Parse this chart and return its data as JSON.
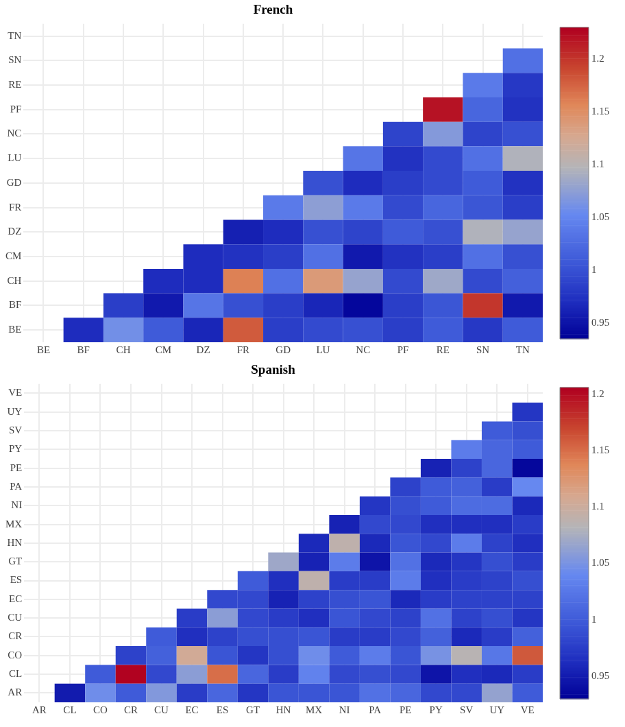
{
  "chart_data": [
    {
      "type": "heatmap",
      "title": "French",
      "grid": true,
      "categories": [
        "BE",
        "BF",
        "CH",
        "CM",
        "DZ",
        "FR",
        "GD",
        "LU",
        "NC",
        "PF",
        "RE",
        "SN",
        "TN"
      ],
      "y_categories": [
        "TN",
        "SN",
        "RE",
        "PF",
        "NC",
        "LU",
        "GD",
        "FR",
        "DZ",
        "CM",
        "CH",
        "BF",
        "BE"
      ],
      "cells": [
        [
          null,
          null,
          null,
          null,
          null,
          null,
          null,
          null,
          null,
          null,
          null,
          null,
          null
        ],
        [
          null,
          null,
          null,
          null,
          null,
          null,
          null,
          null,
          null,
          null,
          null,
          null,
          1.03
        ],
        [
          null,
          null,
          null,
          null,
          null,
          null,
          null,
          null,
          null,
          null,
          null,
          1.04,
          0.98
        ],
        [
          null,
          null,
          null,
          null,
          null,
          null,
          null,
          null,
          null,
          null,
          1.22,
          1.02,
          0.975
        ],
        [
          null,
          null,
          null,
          null,
          null,
          null,
          null,
          null,
          null,
          0.99,
          1.07,
          0.99,
          1.0
        ],
        [
          null,
          null,
          null,
          null,
          null,
          null,
          null,
          null,
          1.035,
          0.975,
          0.995,
          1.03,
          1.095
        ],
        [
          null,
          null,
          null,
          null,
          null,
          null,
          null,
          1.0,
          0.97,
          0.985,
          0.995,
          1.01,
          0.975
        ],
        [
          null,
          null,
          null,
          null,
          null,
          null,
          1.04,
          1.075,
          1.04,
          0.995,
          1.02,
          1.005,
          0.985
        ],
        [
          null,
          null,
          null,
          null,
          null,
          0.96,
          0.97,
          1.0,
          0.99,
          1.01,
          1.0,
          1.095,
          1.08
        ],
        [
          null,
          null,
          null,
          null,
          0.97,
          0.975,
          0.985,
          1.03,
          0.955,
          0.975,
          0.985,
          1.03,
          1.0
        ],
        [
          null,
          null,
          null,
          0.97,
          0.97,
          1.16,
          1.03,
          1.14,
          1.08,
          0.995,
          1.085,
          0.995,
          1.015
        ],
        [
          null,
          null,
          0.985,
          0.955,
          1.035,
          1.0,
          0.985,
          0.965,
          0.94,
          0.985,
          1.005,
          1.2,
          0.955
        ],
        [
          null,
          0.97,
          1.06,
          1.01,
          0.965,
          1.18,
          0.985,
          0.995,
          1.0,
          0.985,
          1.01,
          0.98,
          1.01
        ]
      ],
      "clim": [
        0.935,
        1.23
      ],
      "cticks": [
        0.95,
        1,
        1.05,
        1.1,
        1.15,
        1.2
      ]
    },
    {
      "type": "heatmap",
      "title": "Spanish",
      "grid": true,
      "categories": [
        "AR",
        "CL",
        "CO",
        "CR",
        "CU",
        "EC",
        "ES",
        "GT",
        "HN",
        "MX",
        "NI",
        "PA",
        "PE",
        "PY",
        "SV",
        "UY",
        "VE"
      ],
      "y_categories": [
        "VE",
        "UY",
        "SV",
        "PY",
        "PE",
        "PA",
        "NI",
        "MX",
        "HN",
        "GT",
        "ES",
        "EC",
        "CU",
        "CR",
        "CO",
        "CL",
        "AR"
      ],
      "cells": [
        [
          null,
          null,
          null,
          null,
          null,
          null,
          null,
          null,
          null,
          null,
          null,
          null,
          null,
          null,
          null,
          null,
          null
        ],
        [
          null,
          null,
          null,
          null,
          null,
          null,
          null,
          null,
          null,
          null,
          null,
          null,
          null,
          null,
          null,
          null,
          0.97
        ],
        [
          null,
          null,
          null,
          null,
          null,
          null,
          null,
          null,
          null,
          null,
          null,
          null,
          null,
          null,
          null,
          1.0,
          0.99
        ],
        [
          null,
          null,
          null,
          null,
          null,
          null,
          null,
          null,
          null,
          null,
          null,
          null,
          null,
          null,
          1.03,
          1.01,
          1.0
        ],
        [
          null,
          null,
          null,
          null,
          null,
          null,
          null,
          null,
          null,
          null,
          null,
          null,
          null,
          0.955,
          0.98,
          1.01,
          0.935
        ],
        [
          null,
          null,
          null,
          null,
          null,
          null,
          null,
          null,
          null,
          null,
          null,
          null,
          0.98,
          1.0,
          1.005,
          0.975,
          1.04
        ],
        [
          null,
          null,
          null,
          null,
          null,
          null,
          null,
          null,
          null,
          null,
          null,
          0.97,
          0.99,
          1.0,
          1.015,
          1.015,
          0.96
        ],
        [
          null,
          null,
          null,
          null,
          null,
          null,
          null,
          null,
          null,
          null,
          0.955,
          0.985,
          0.985,
          0.965,
          0.965,
          0.965,
          0.975
        ],
        [
          null,
          null,
          null,
          null,
          null,
          null,
          null,
          null,
          null,
          0.96,
          1.09,
          0.96,
          0.995,
          0.985,
          1.03,
          0.98,
          0.965
        ],
        [
          null,
          null,
          null,
          null,
          null,
          null,
          null,
          null,
          1.07,
          0.955,
          1.03,
          0.945,
          1.02,
          0.96,
          0.97,
          0.99,
          0.975
        ],
        [
          null,
          null,
          null,
          null,
          null,
          null,
          null,
          1.0,
          0.965,
          1.09,
          0.975,
          0.975,
          1.03,
          0.965,
          0.975,
          0.98,
          0.99
        ],
        [
          null,
          null,
          null,
          null,
          null,
          null,
          0.985,
          0.985,
          0.955,
          0.98,
          0.99,
          0.995,
          0.96,
          0.975,
          0.98,
          0.98,
          0.98
        ],
        [
          null,
          null,
          null,
          null,
          null,
          0.975,
          1.06,
          0.985,
          0.975,
          0.965,
          0.995,
          0.985,
          0.98,
          1.02,
          0.98,
          0.99,
          0.97
        ],
        [
          null,
          null,
          null,
          null,
          1.0,
          0.965,
          0.98,
          0.99,
          0.99,
          0.995,
          0.975,
          0.975,
          0.985,
          1.005,
          0.96,
          0.975,
          1.005
        ],
        [
          null,
          null,
          null,
          0.98,
          1.005,
          1.105,
          0.995,
          0.97,
          0.99,
          1.045,
          1.0,
          1.03,
          0.995,
          1.05,
          1.085,
          1.025,
          1.16
        ],
        [
          null,
          null,
          1.0,
          1.205,
          0.985,
          1.06,
          1.15,
          1.01,
          0.975,
          1.035,
          0.985,
          0.99,
          0.985,
          0.945,
          0.965,
          0.96,
          0.975
        ],
        [
          null,
          0.95,
          1.045,
          1.0,
          1.055,
          0.975,
          1.01,
          0.97,
          0.995,
          0.995,
          0.995,
          1.02,
          1.01,
          0.985,
          0.985,
          1.065,
          1.0
        ]
      ],
      "clim": [
        0.93,
        1.206
      ],
      "cticks": [
        0.95,
        1,
        1.05,
        1.1,
        1.15,
        1.2
      ]
    }
  ]
}
